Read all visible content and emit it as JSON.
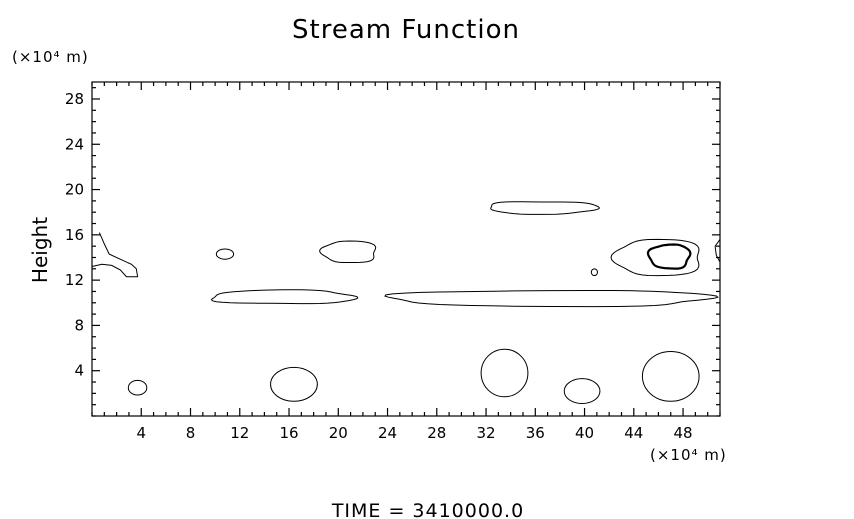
{
  "chart_data": {
    "type": "contour",
    "title": "Stream Function",
    "ylabel": "Height",
    "xlabel": "",
    "x_unit_label": "(×10⁴ m)",
    "y_unit_label": "(×10⁴ m)",
    "footer": "TIME = 3410000.0",
    "xlim": [
      0,
      51
    ],
    "ylim": [
      0,
      29.5
    ],
    "x_ticks": [
      4,
      8,
      12,
      16,
      20,
      24,
      28,
      32,
      36,
      40,
      44,
      48
    ],
    "y_ticks": [
      4,
      8,
      12,
      16,
      20,
      24,
      28
    ],
    "x_minor_step": 1,
    "y_minor_step": 1,
    "contours": [
      {
        "type": "polyline",
        "points": [
          [
            0.6,
            16.2
          ],
          [
            1.0,
            15.2
          ],
          [
            1.4,
            14.3
          ],
          [
            2.4,
            13.8
          ],
          [
            3.2,
            13.4
          ],
          [
            3.6,
            13.0
          ],
          [
            3.7,
            12.3
          ],
          [
            2.8,
            12.3
          ],
          [
            2.3,
            12.9
          ],
          [
            1.6,
            13.3
          ],
          [
            0.8,
            13.4
          ],
          [
            0,
            13.2
          ]
        ]
      },
      {
        "type": "ellipse",
        "cx": 3.7,
        "cy": 2.5,
        "rx": 0.75,
        "ry": 0.65
      },
      {
        "type": "ellipse",
        "cx": 10.8,
        "cy": 14.3,
        "rx": 0.7,
        "ry": 0.45
      },
      {
        "type": "blob",
        "cx": 15.5,
        "cy": 10.5,
        "rx": 5.8,
        "ry": 0.6
      },
      {
        "type": "ellipse",
        "cx": 16.4,
        "cy": 2.8,
        "rx": 1.9,
        "ry": 1.5
      },
      {
        "type": "blob",
        "cx": 20.9,
        "cy": 14.5,
        "rx": 2.2,
        "ry": 0.95
      },
      {
        "type": "blob",
        "cx": 37.3,
        "cy": 10.4,
        "rx": 13.0,
        "ry": 0.7
      },
      {
        "type": "blob",
        "cx": 36.6,
        "cy": 18.4,
        "rx": 4.4,
        "ry": 0.55
      },
      {
        "type": "ellipse",
        "cx": 33.5,
        "cy": 3.8,
        "rx": 1.9,
        "ry": 2.1
      },
      {
        "type": "ellipse",
        "cx": 39.8,
        "cy": 2.2,
        "rx": 1.45,
        "ry": 1.1
      },
      {
        "type": "ellipse",
        "cx": 40.8,
        "cy": 12.7,
        "rx": 0.25,
        "ry": 0.3
      },
      {
        "type": "blob",
        "cx": 46.0,
        "cy": 14.0,
        "rx": 3.5,
        "ry": 1.6
      },
      {
        "type": "blob",
        "cx": 46.9,
        "cy": 14.1,
        "rx": 1.65,
        "ry": 1.05,
        "thick": true
      },
      {
        "type": "ellipse",
        "cx": 47.0,
        "cy": 3.5,
        "rx": 2.3,
        "ry": 2.2
      },
      {
        "type": "polyline",
        "points": [
          [
            51,
            15.6
          ],
          [
            50.6,
            15.0
          ],
          [
            50.7,
            14.2
          ],
          [
            51,
            13.6
          ]
        ]
      }
    ]
  }
}
